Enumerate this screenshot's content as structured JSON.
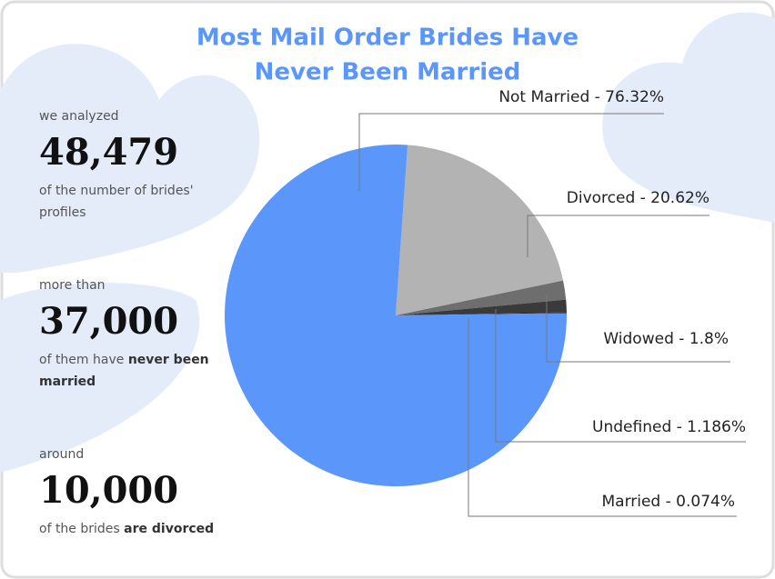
{
  "chart_data": {
    "type": "pie",
    "title": "Most Mail Order Brides Have Never Been Married",
    "values": [
      76.32,
      20.62,
      1.8,
      1.186,
      0.074
    ],
    "value_labels": [
      "Not Married - 76.32%",
      "Divorced - 20.62%",
      "Widowed - 1.8%",
      "Undefined - 1.186%",
      "Married - 0.074%"
    ],
    "colors": [
      "#5b97fb",
      "#b3b3b3",
      "#6e6e6e",
      "#3a3a3a",
      "#111111"
    ]
  },
  "stats": [
    {
      "intro": "we analyzed",
      "number": "48,479",
      "text": "of the number of brides' profiles"
    },
    {
      "intro": "more than",
      "number": "37,000",
      "text": "of them have ",
      "bold": "never been married"
    },
    {
      "intro": "around",
      "number": "10,000",
      "text": "of the brides ",
      "bold": "are divorced"
    }
  ]
}
